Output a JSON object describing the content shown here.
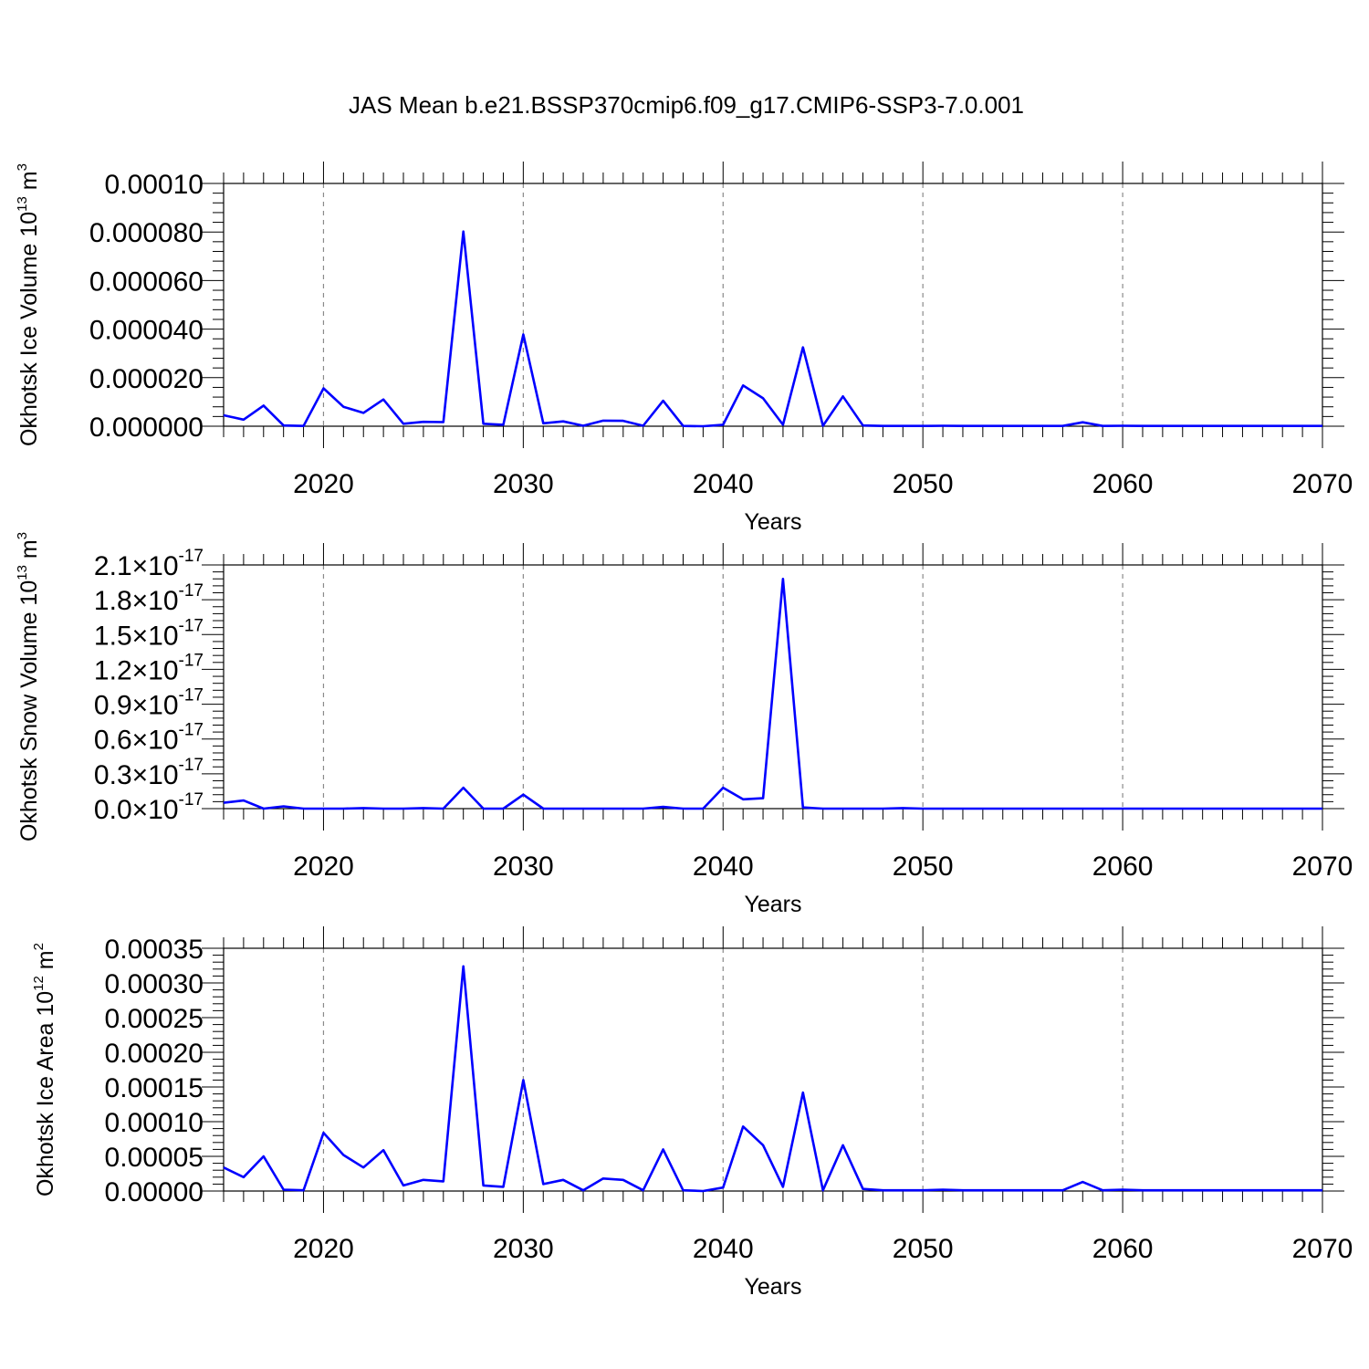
{
  "title": "JAS Mean b.e21.BSSP370cmip6.f09_g17.CMIP6-SSP3-7.0.001",
  "chart_data": [
    {
      "type": "line",
      "ylabel_main": "Okhotsk Ice Volume 10",
      "ylabel_exp": "13",
      "ylabel_unit": " m",
      "ylabel_unit_exp": "3",
      "xlabel": "Years",
      "xlim": [
        2015,
        2070
      ],
      "ylim": [
        0,
        0.0001
      ],
      "x_ticks": [
        "2020",
        "2030",
        "2040",
        "2050",
        "2060",
        "2070"
      ],
      "y_ticks": [
        {
          "value": 0.0,
          "label": "0.000000"
        },
        {
          "value": 2e-05,
          "label": "0.000020"
        },
        {
          "value": 4e-05,
          "label": "0.000040"
        },
        {
          "value": 6e-05,
          "label": "0.000060"
        },
        {
          "value": 8e-05,
          "label": "0.000080"
        },
        {
          "value": 0.0001,
          "label": "0.00010"
        }
      ],
      "grid": "vertical dashed",
      "color": "#0000ff",
      "x": [
        2015,
        2016,
        2017,
        2018,
        2019,
        2020,
        2021,
        2022,
        2023,
        2024,
        2025,
        2026,
        2027,
        2028,
        2029,
        2030,
        2031,
        2032,
        2033,
        2034,
        2035,
        2036,
        2037,
        2038,
        2039,
        2040,
        2041,
        2042,
        2043,
        2044,
        2045,
        2046,
        2047,
        2048,
        2049,
        2050,
        2051,
        2052,
        2053,
        2054,
        2055,
        2056,
        2057,
        2058,
        2059,
        2060,
        2061,
        2062,
        2063,
        2064,
        2065,
        2066,
        2067,
        2068,
        2069,
        2070
      ],
      "y": [
        4.5e-06,
        2.7e-06,
        8.5e-06,
        3e-07,
        1e-07,
        1.56e-05,
        8e-06,
        5.5e-06,
        1.1e-05,
        1e-06,
        1.8e-06,
        1.7e-06,
        8.02e-05,
        1e-06,
        6e-07,
        3.78e-05,
        1.2e-06,
        2e-06,
        2e-07,
        2.3e-06,
        2.2e-06,
        2e-07,
        1.05e-05,
        1e-07,
        0.0,
        6e-07,
        1.68e-05,
        1.15e-05,
        6e-07,
        3.25e-05,
        2e-07,
        1.23e-05,
        3e-07,
        1e-07,
        1e-07,
        1e-07,
        2e-07,
        1e-07,
        1e-07,
        1e-07,
        1e-07,
        1e-07,
        1e-07,
        1.6e-06,
        1e-07,
        2e-07,
        1e-07,
        1e-07,
        1e-07,
        1e-07,
        1e-07,
        1e-07,
        1e-07,
        1e-07,
        1e-07,
        1e-07
      ]
    },
    {
      "type": "line",
      "ylabel_main": "Okhotsk Snow Volume 10",
      "ylabel_exp": "13",
      "ylabel_unit": " m",
      "ylabel_unit_exp": "3",
      "xlabel": "Years",
      "xlim": [
        2015,
        2070
      ],
      "ylim": [
        0,
        2.1
      ],
      "y_multiplier": "1e-17",
      "x_ticks": [
        "2020",
        "2030",
        "2040",
        "2050",
        "2060",
        "2070"
      ],
      "y_ticks": [
        {
          "value": 0.0,
          "mant": "0.0",
          "times": "×10",
          "exp": "-17"
        },
        {
          "value": 0.3,
          "mant": "0.3",
          "times": "×10",
          "exp": "-17"
        },
        {
          "value": 0.6,
          "mant": "0.6",
          "times": "×10",
          "exp": "-17"
        },
        {
          "value": 0.9,
          "mant": "0.9",
          "times": "×10",
          "exp": "-17"
        },
        {
          "value": 1.2,
          "mant": "1.2",
          "times": "×10",
          "exp": "-17"
        },
        {
          "value": 1.5,
          "mant": "1.5",
          "times": "×10",
          "exp": "-17"
        },
        {
          "value": 1.8,
          "mant": "1.8",
          "times": "×10",
          "exp": "-17"
        },
        {
          "value": 2.1,
          "mant": "2.1",
          "times": "×10",
          "exp": "-17"
        }
      ],
      "grid": "vertical dashed",
      "color": "#0000ff",
      "x": [
        2015,
        2016,
        2017,
        2018,
        2019,
        2020,
        2021,
        2022,
        2023,
        2024,
        2025,
        2026,
        2027,
        2028,
        2029,
        2030,
        2031,
        2032,
        2033,
        2034,
        2035,
        2036,
        2037,
        2038,
        2039,
        2040,
        2041,
        2042,
        2043,
        2044,
        2045,
        2046,
        2047,
        2048,
        2049,
        2050,
        2051,
        2052,
        2053,
        2054,
        2055,
        2056,
        2057,
        2058,
        2059,
        2060,
        2061,
        2062,
        2063,
        2064,
        2065,
        2066,
        2067,
        2068,
        2069,
        2070
      ],
      "y": [
        0.05,
        0.07,
        0.0,
        0.02,
        0.0,
        0.0,
        0.0,
        0.005,
        0.0,
        0.0,
        0.005,
        0.0,
        0.18,
        0.0,
        0.0,
        0.12,
        0.0,
        0.0,
        0.0,
        0.0,
        0.0,
        0.0,
        0.015,
        0.0,
        0.0,
        0.18,
        0.08,
        0.09,
        1.98,
        0.01,
        0.0,
        0.0,
        0.0,
        0.0,
        0.005,
        0.0,
        0.0,
        0.0,
        0.0,
        0.0,
        0.0,
        0.0,
        0.0,
        0.0,
        0.0,
        0.0,
        0.0,
        0.0,
        0.0,
        0.0,
        0.0,
        0.0,
        0.0,
        0.0,
        0.0,
        0.0
      ]
    },
    {
      "type": "line",
      "ylabel_main": "Okhotsk Ice Area 10",
      "ylabel_exp": "12",
      "ylabel_unit": " m",
      "ylabel_unit_exp": "2",
      "xlabel": "Years",
      "xlim": [
        2015,
        2070
      ],
      "ylim": [
        0,
        0.00035
      ],
      "x_ticks": [
        "2020",
        "2030",
        "2040",
        "2050",
        "2060",
        "2070"
      ],
      "y_ticks": [
        {
          "value": 0.0,
          "label": "0.00000"
        },
        {
          "value": 5e-05,
          "label": "0.00005"
        },
        {
          "value": 0.0001,
          "label": "0.00010"
        },
        {
          "value": 0.00015,
          "label": "0.00015"
        },
        {
          "value": 0.0002,
          "label": "0.00020"
        },
        {
          "value": 0.00025,
          "label": "0.00025"
        },
        {
          "value": 0.0003,
          "label": "0.00030"
        },
        {
          "value": 0.00035,
          "label": "0.00035"
        }
      ],
      "grid": "vertical dashed",
      "color": "#0000ff",
      "x": [
        2015,
        2016,
        2017,
        2018,
        2019,
        2020,
        2021,
        2022,
        2023,
        2024,
        2025,
        2026,
        2027,
        2028,
        2029,
        2030,
        2031,
        2032,
        2033,
        2034,
        2035,
        2036,
        2037,
        2038,
        2039,
        2040,
        2041,
        2042,
        2043,
        2044,
        2045,
        2046,
        2047,
        2048,
        2049,
        2050,
        2051,
        2052,
        2053,
        2054,
        2055,
        2056,
        2057,
        2058,
        2059,
        2060,
        2061,
        2062,
        2063,
        2064,
        2065,
        2066,
        2067,
        2068,
        2069,
        2070
      ],
      "y": [
        3.4e-05,
        2e-05,
        5e-05,
        2e-06,
        1e-06,
        8.4e-05,
        5.2e-05,
        3.4e-05,
        5.9e-05,
        8e-06,
        1.6e-05,
        1.4e-05,
        0.000324,
        8e-06,
        6e-06,
        0.00016,
        1e-05,
        1.6e-05,
        1e-06,
        1.8e-05,
        1.6e-05,
        1e-06,
        6e-05,
        1e-06,
        0.0,
        5e-06,
        9.3e-05,
        6.6e-05,
        6e-06,
        0.000142,
        1e-06,
        6.6e-05,
        3e-06,
        1e-06,
        1e-06,
        1e-06,
        2e-06,
        1e-06,
        1e-06,
        1e-06,
        1e-06,
        1e-06,
        1e-06,
        1.3e-05,
        1e-06,
        2e-06,
        1e-06,
        1e-06,
        1e-06,
        1e-06,
        1e-06,
        1e-06,
        1e-06,
        1e-06,
        1e-06,
        1e-06
      ]
    }
  ]
}
